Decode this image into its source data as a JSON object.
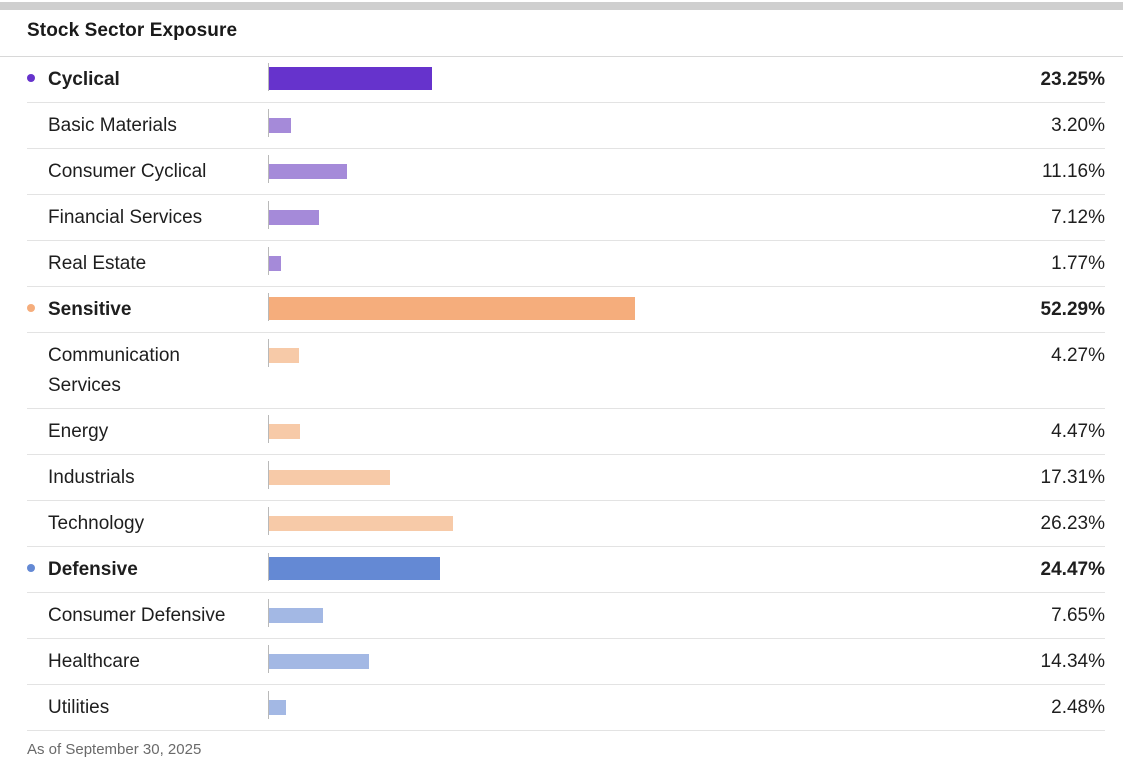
{
  "title": "Stock Sector Exposure",
  "footnote": "As of September 30, 2025",
  "colors": {
    "cyclical": "#6633cc",
    "cyclical_light": "#a58ad9",
    "sensitive": "#f5ad7c",
    "sensitive_light": "#f7caa8",
    "defensive": "#6489d4",
    "defensive_light": "#a3b8e4"
  },
  "chart_data": {
    "type": "bar",
    "orientation": "horizontal",
    "title": "Stock Sector Exposure",
    "unit": "%",
    "xlim": [
      0,
      100
    ],
    "rows": [
      {
        "label": "Cyclical",
        "value": 23.25,
        "display": "23.25%",
        "level": "group",
        "color_key": "cyclical"
      },
      {
        "label": "Basic Materials",
        "value": 3.2,
        "display": "3.20%",
        "level": "sub",
        "color_key": "cyclical_light"
      },
      {
        "label": "Consumer Cyclical",
        "value": 11.16,
        "display": "11.16%",
        "level": "sub",
        "color_key": "cyclical_light"
      },
      {
        "label": "Financial Services",
        "value": 7.12,
        "display": "7.12%",
        "level": "sub",
        "color_key": "cyclical_light"
      },
      {
        "label": "Real Estate",
        "value": 1.77,
        "display": "1.77%",
        "level": "sub",
        "color_key": "cyclical_light"
      },
      {
        "label": "Sensitive",
        "value": 52.29,
        "display": "52.29%",
        "level": "group",
        "color_key": "sensitive"
      },
      {
        "label": "Communication Services",
        "value": 4.27,
        "display": "4.27%",
        "level": "sub",
        "color_key": "sensitive_light"
      },
      {
        "label": "Energy",
        "value": 4.47,
        "display": "4.47%",
        "level": "sub",
        "color_key": "sensitive_light"
      },
      {
        "label": "Industrials",
        "value": 17.31,
        "display": "17.31%",
        "level": "sub",
        "color_key": "sensitive_light"
      },
      {
        "label": "Technology",
        "value": 26.23,
        "display": "26.23%",
        "level": "sub",
        "color_key": "sensitive_light"
      },
      {
        "label": "Defensive",
        "value": 24.47,
        "display": "24.47%",
        "level": "group",
        "color_key": "defensive"
      },
      {
        "label": "Consumer Defensive",
        "value": 7.65,
        "display": "7.65%",
        "level": "sub",
        "color_key": "defensive_light"
      },
      {
        "label": "Healthcare",
        "value": 14.34,
        "display": "14.34%",
        "level": "sub",
        "color_key": "defensive_light"
      },
      {
        "label": "Utilities",
        "value": 2.48,
        "display": "2.48%",
        "level": "sub",
        "color_key": "defensive_light"
      }
    ]
  }
}
